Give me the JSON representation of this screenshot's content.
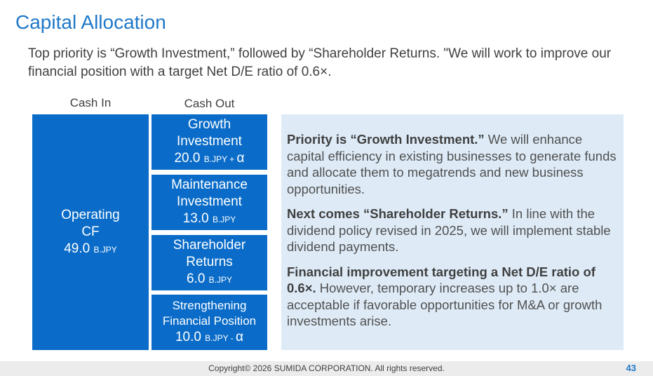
{
  "title": "Capital Allocation",
  "subtitle": "Top priority is “Growth Investment,” followed by “Shareholder Returns. \"We will work to improve our financial position with a target Net D/E ratio of 0.6×.",
  "cash_in": {
    "header": "Cash In",
    "box": {
      "line1": "Operating",
      "line2": "CF",
      "amount": "49.0",
      "unit": "B.JPY"
    }
  },
  "cash_out": {
    "header": "Cash Out",
    "items": [
      {
        "line1": "Growth",
        "line2": "Investment",
        "amount": "20.0",
        "unit": "B.JPY + ",
        "suffix": "α"
      },
      {
        "line1": "Maintenance",
        "line2": "Investment",
        "amount": "13.0",
        "unit": "B.JPY",
        "suffix": ""
      },
      {
        "line1": "Shareholder",
        "line2": "Returns",
        "amount": "6.0",
        "unit": "B.JPY",
        "suffix": ""
      },
      {
        "line1": "Strengthening",
        "line2": "Financial Position",
        "amount": "10.0",
        "unit": "B.JPY - ",
        "suffix": "α"
      }
    ]
  },
  "panel": {
    "p1_bold": "Priority is “Growth Investment.”",
    "p1_text": " We will enhance capital efficiency in existing businesses to generate funds and allocate them to megatrends and new business opportunities.",
    "p2_bold": "Next comes “Shareholder Returns.”",
    "p2_text": " In line with the dividend policy revised in 2025, we will implement stable dividend payments.",
    "p3_bold": "Financial improvement targeting a Net D/E ratio of 0.6×.",
    "p3_text": " However, temporary increases up to 1.0× are acceptable if favorable opportunities for M&A or growth investments arise."
  },
  "footer": {
    "copyright": "Copyright© 2026 SUMIDA CORPORATION. All rights reserved.",
    "page_number": "43"
  },
  "colors": {
    "accent": "#1f78c8",
    "box": "#0a6cc8",
    "panel": "#deebf7"
  }
}
